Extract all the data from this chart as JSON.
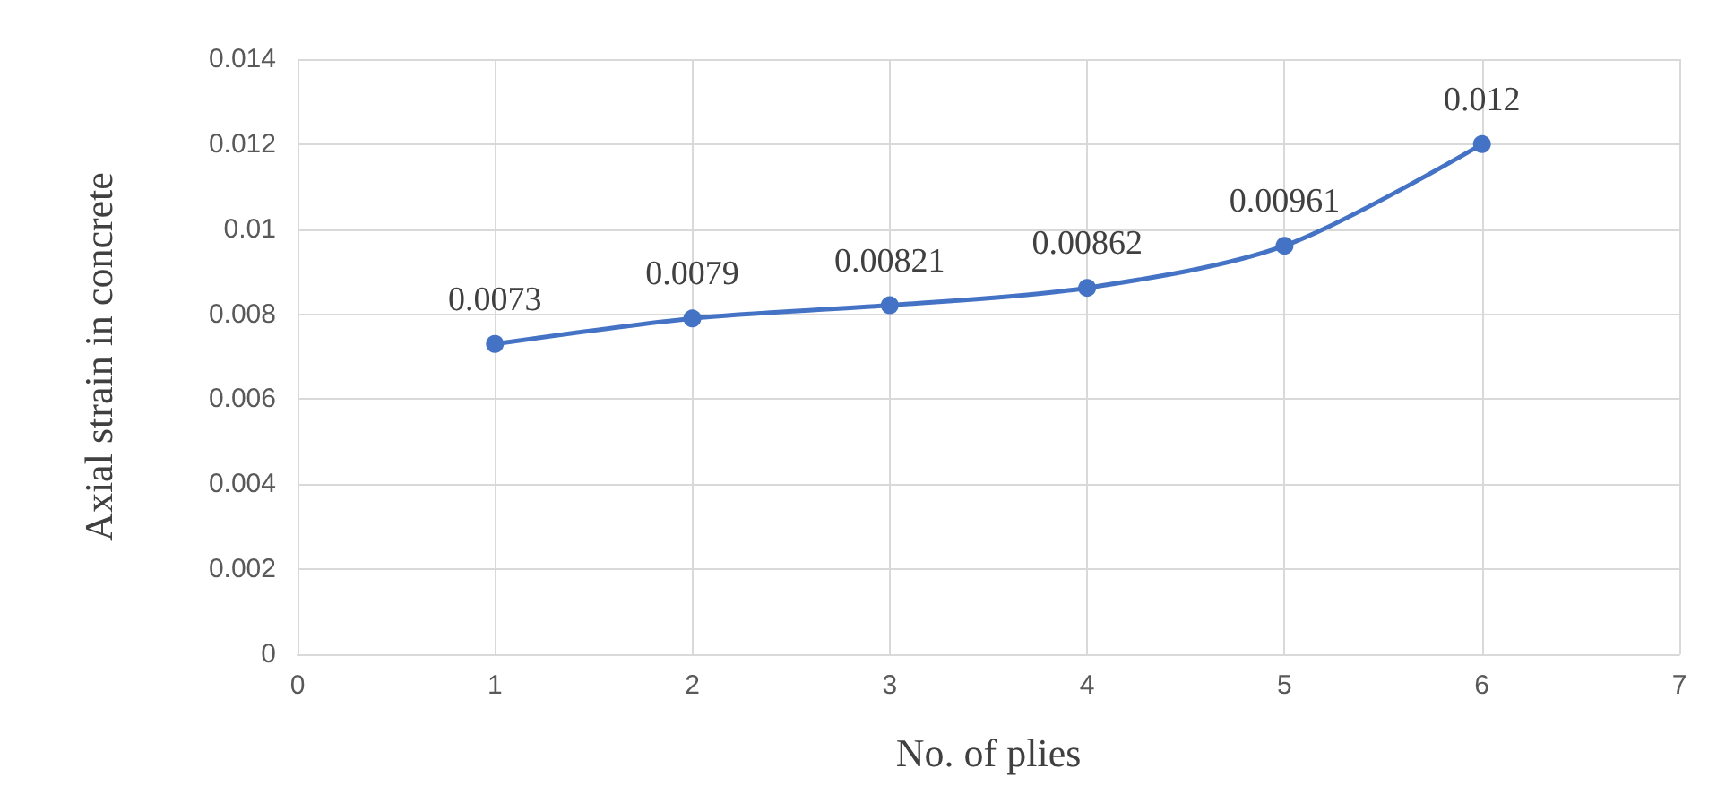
{
  "chart_data": {
    "type": "line",
    "xlabel": "No. of plies",
    "ylabel": "Axial strain in concrete",
    "x": [
      1,
      2,
      3,
      4,
      5,
      6
    ],
    "series": [
      {
        "color": "#4472c4",
        "values": [
          0.0073,
          0.0079,
          0.00821,
          0.00862,
          0.00961,
          0.012
        ]
      }
    ],
    "xlim": [
      0,
      7
    ],
    "xticks": [
      0,
      1,
      2,
      3,
      4,
      5,
      6,
      7
    ],
    "ylim": [
      0,
      0.014
    ],
    "yticks": [
      0,
      0.002,
      0.004,
      0.006,
      0.008,
      0.01,
      0.012,
      0.014
    ],
    "grid": true,
    "marker": "circle",
    "line_style": "solid",
    "data_labels": true
  }
}
